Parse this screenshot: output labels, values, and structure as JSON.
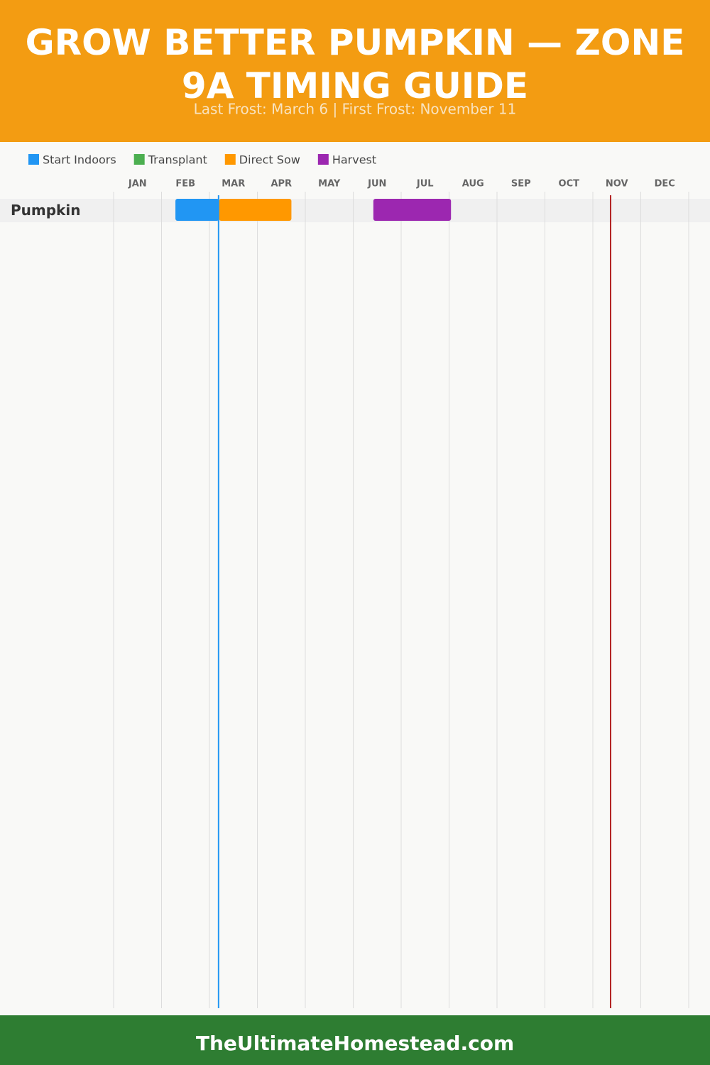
{
  "chart_data": {
    "type": "gantt",
    "title": "GROW BETTER PUMPKIN — ZONE 9A TIMING GUIDE",
    "subtitle": "Last Frost: March 6 | First Frost: November 11",
    "footer": "TheUltimateHomestead.com",
    "categories": [
      "Pumpkin"
    ],
    "xlim": [
      0,
      12
    ],
    "xticks": [
      {
        "value": 0,
        "label": "JAN"
      },
      {
        "value": 1,
        "label": "FEB"
      },
      {
        "value": 2,
        "label": "MAR"
      },
      {
        "value": 3,
        "label": "APR"
      },
      {
        "value": 4,
        "label": "MAY"
      },
      {
        "value": 5,
        "label": "JUN"
      },
      {
        "value": 6,
        "label": "JUL"
      },
      {
        "value": 7,
        "label": "AUG"
      },
      {
        "value": 8,
        "label": "SEP"
      },
      {
        "value": 9,
        "label": "OCT"
      },
      {
        "value": 10,
        "label": "NOV"
      },
      {
        "value": 11,
        "label": "DEC"
      }
    ],
    "grid": true,
    "series": [
      {
        "name": "Start Indoors",
        "color": "#2196f3",
        "values": [
          [
            1.29,
            2.2
          ]
        ]
      },
      {
        "name": "Transplant",
        "color": "#4caf50",
        "values": [
          null
        ]
      },
      {
        "name": "Direct Sow",
        "color": "#ff9800",
        "values": [
          [
            2.2,
            3.71
          ]
        ]
      },
      {
        "name": "Harvest",
        "color": "#9c27b0",
        "values": [
          [
            5.42,
            7.04
          ]
        ]
      }
    ],
    "markers": [
      {
        "x": 2.19,
        "color": "#2196f3"
      },
      {
        "x": 10.37,
        "color": "#b22222"
      }
    ]
  }
}
